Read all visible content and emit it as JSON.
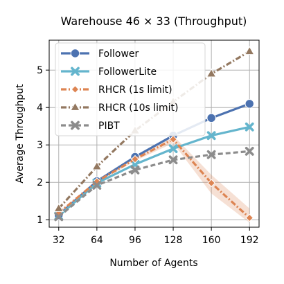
{
  "chart_data": {
    "type": "line",
    "title": "Warehouse 46 × 33 (Throughput)",
    "xlabel": "Number of Agents",
    "ylabel": "Average Throughput",
    "x": [
      32,
      64,
      96,
      128,
      160,
      192
    ],
    "x_tick_labels": [
      "32",
      "64",
      "96",
      "128",
      "160",
      "192"
    ],
    "y_ticks": [
      1,
      2,
      3,
      4,
      5
    ],
    "y_tick_labels": [
      "1",
      "2",
      "3",
      "4",
      "5"
    ],
    "xlim": [
      24,
      200
    ],
    "ylim": [
      0.8,
      5.8
    ],
    "grid": true,
    "legend_position": "upper-left",
    "series": [
      {
        "name": "Follower",
        "values": [
          1.12,
          2.03,
          2.68,
          3.25,
          3.72,
          4.1
        ],
        "color": "#4c72b0",
        "dash": "solid",
        "marker": "circle"
      },
      {
        "name": "FollowerLite",
        "values": [
          1.1,
          1.98,
          2.48,
          2.9,
          3.25,
          3.48
        ],
        "color": "#64b5cd",
        "dash": "solid",
        "marker": "x"
      },
      {
        "name": "RHCR (1s limit)",
        "values": [
          1.18,
          2.02,
          2.62,
          3.15,
          1.98,
          1.05
        ],
        "color": "#dd8452",
        "dash": "dashdot",
        "marker": "diamond",
        "band_lower": [
          1.15,
          1.98,
          2.57,
          3.05,
          1.7,
          0.92
        ],
        "band_upper": [
          1.21,
          2.06,
          2.67,
          3.25,
          2.2,
          1.3
        ]
      },
      {
        "name": "RHCR (10s limit)",
        "values": [
          1.3,
          2.42,
          3.38,
          4.15,
          4.9,
          5.5
        ],
        "color": "#937860",
        "dash": "dashdot",
        "marker": "triangle"
      },
      {
        "name": "PIBT",
        "values": [
          1.08,
          1.92,
          2.33,
          2.6,
          2.74,
          2.83
        ],
        "color": "#8c8c8c",
        "dash": "dashed",
        "marker": "x"
      }
    ]
  }
}
